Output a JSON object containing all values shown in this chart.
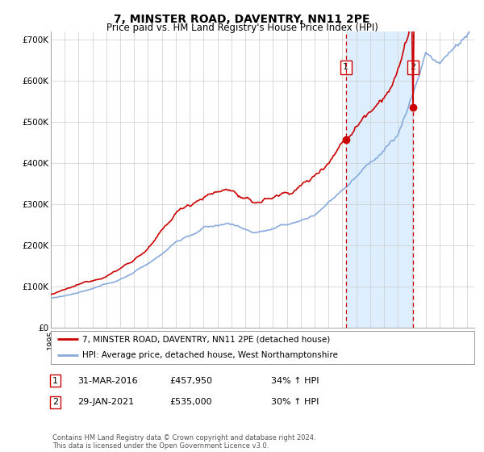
{
  "title": "7, MINSTER ROAD, DAVENTRY, NN11 2PE",
  "subtitle": "Price paid vs. HM Land Registry's House Price Index (HPI)",
  "title_fontsize": 10,
  "subtitle_fontsize": 8.5,
  "ylim": [
    0,
    720000
  ],
  "xlim_start": 1995.0,
  "xlim_end": 2025.5,
  "background_color": "#ffffff",
  "plot_bg_color": "#ffffff",
  "grid_color": "#cccccc",
  "marker1_x": 2016.25,
  "marker1_y": 457950,
  "marker2_x": 2021.08,
  "marker2_y": 535000,
  "vline1_x": 2016.25,
  "vline2_x": 2021.08,
  "shade_color": "#ddeeff",
  "legend_entries": [
    "7, MINSTER ROAD, DAVENTRY, NN11 2PE (detached house)",
    "HPI: Average price, detached house, West Northamptonshire"
  ],
  "red_line_color": "#cc0000",
  "blue_line_color": "#88aadd",
  "table_row1": [
    "1",
    "31-MAR-2016",
    "£457,950",
    "34% ↑ HPI"
  ],
  "table_row2": [
    "2",
    "29-JAN-2021",
    "£535,000",
    "30% ↑ HPI"
  ],
  "footer": "Contains HM Land Registry data © Crown copyright and database right 2024.\nThis data is licensed under the Open Government Licence v3.0.",
  "yticks": [
    0,
    100000,
    200000,
    300000,
    400000,
    500000,
    600000,
    700000
  ],
  "ytick_labels": [
    "£0",
    "£100K",
    "£200K",
    "£300K",
    "£400K",
    "£500K",
    "£600K",
    "£700K"
  ]
}
